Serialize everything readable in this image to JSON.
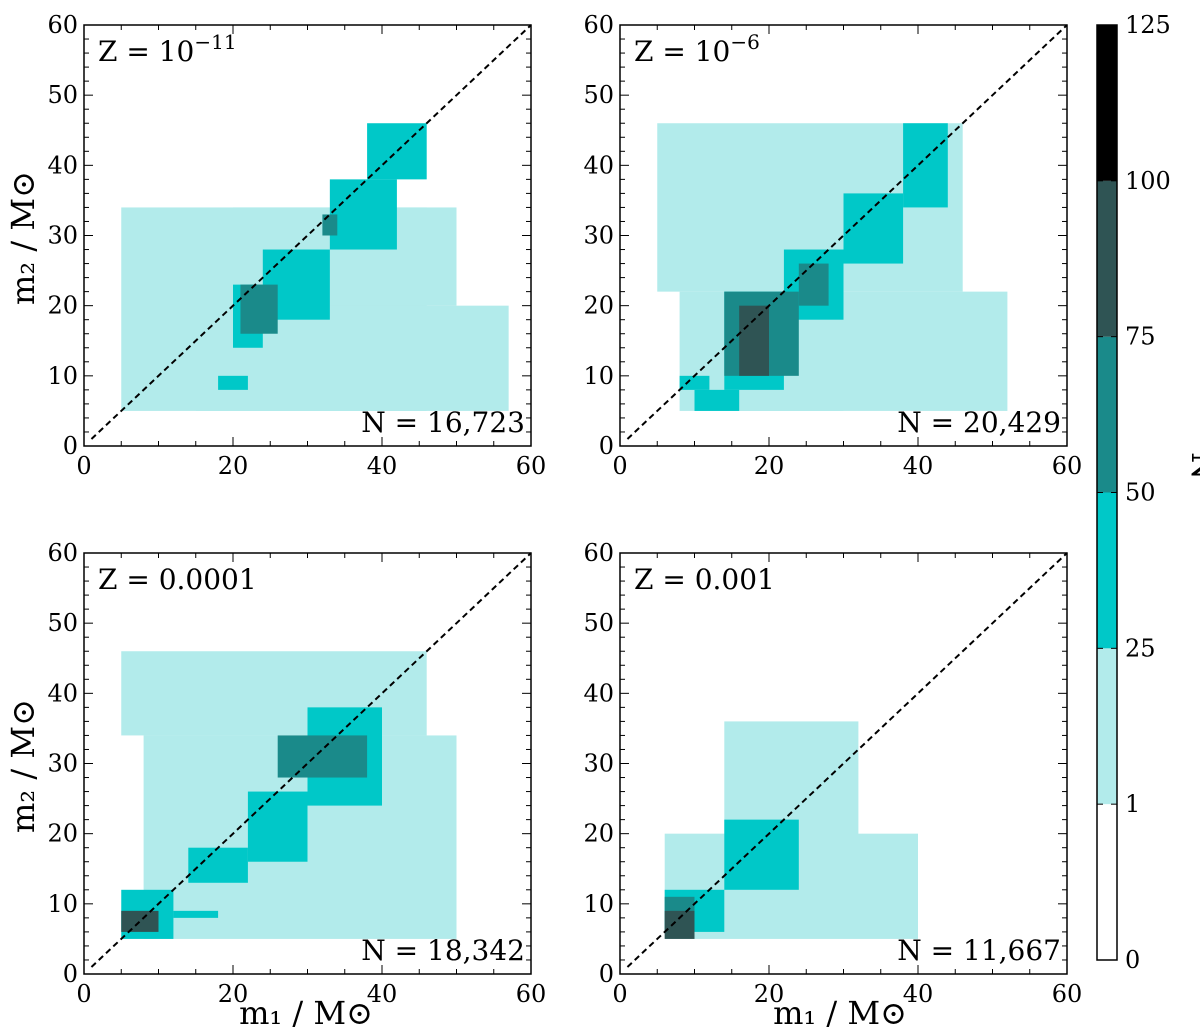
{
  "chart_data": {
    "type": "heatmap",
    "panels": [
      {
        "label": "Z = 10",
        "label_exponent": "−11",
        "count_text": "N = 16,723",
        "xlim": [
          0,
          60
        ],
        "ylim": [
          0,
          60
        ],
        "x_ticks": [
          "0",
          "20",
          "40",
          "60"
        ],
        "y_ticks": [
          "0",
          "10",
          "20",
          "30",
          "40",
          "50",
          "60"
        ],
        "regions": [
          {
            "rect": [
              5,
              46,
              5,
              34
            ],
            "level": 1
          },
          {
            "rect": [
              12,
              46,
              14,
              26
            ],
            "level": 1
          },
          {
            "rect": [
              15,
              57,
              5,
              20
            ],
            "level": 1
          },
          {
            "rect": [
              20,
              50,
              20,
              34
            ],
            "level": 1
          },
          {
            "rect": [
              20,
              24,
              14,
              23
            ],
            "level": 2
          },
          {
            "rect": [
              24,
              33,
              18,
              28
            ],
            "level": 2
          },
          {
            "rect": [
              33,
              42,
              28,
              38
            ],
            "level": 2
          },
          {
            "rect": [
              38,
              46,
              38,
              46
            ],
            "level": 2
          },
          {
            "rect": [
              18,
              22,
              8,
              10
            ],
            "level": 2
          },
          {
            "rect": [
              21,
              26,
              16,
              23
            ],
            "level": 3
          },
          {
            "rect": [
              32,
              34,
              30,
              33
            ],
            "level": 3
          }
        ]
      },
      {
        "label": "Z = 10",
        "label_exponent": "−6",
        "count_text": "N = 20,429",
        "xlim": [
          0,
          60
        ],
        "ylim": [
          0,
          60
        ],
        "x_ticks": [
          "0",
          "20",
          "40",
          "60"
        ],
        "y_ticks": [
          "0",
          "10",
          "20",
          "30",
          "40",
          "50",
          "60"
        ],
        "regions": [
          {
            "rect": [
              5,
              46,
              22,
              46
            ],
            "level": 1
          },
          {
            "rect": [
              8,
              52,
              5,
              22
            ],
            "level": 1
          },
          {
            "rect": [
              12,
              30,
              5,
              20
            ],
            "level": 1
          },
          {
            "rect": [
              8,
              12,
              8,
              10
            ],
            "level": 2
          },
          {
            "rect": [
              10,
              16,
              5,
              8
            ],
            "level": 2
          },
          {
            "rect": [
              14,
              22,
              8,
              22
            ],
            "level": 2
          },
          {
            "rect": [
              22,
              30,
              18,
              28
            ],
            "level": 2
          },
          {
            "rect": [
              30,
              38,
              26,
              36
            ],
            "level": 2
          },
          {
            "rect": [
              38,
              44,
              34,
              46
            ],
            "level": 2
          },
          {
            "rect": [
              14,
              24,
              10,
              22
            ],
            "level": 3
          },
          {
            "rect": [
              24,
              28,
              20,
              26
            ],
            "level": 3
          },
          {
            "rect": [
              16,
              20,
              10,
              20
            ],
            "level": 4
          }
        ]
      },
      {
        "label": "Z = 0.0001",
        "label_exponent": "",
        "count_text": "N = 18,342",
        "xlim": [
          0,
          60
        ],
        "ylim": [
          0,
          60
        ],
        "x_ticks": [
          "0",
          "20",
          "40",
          "60"
        ],
        "y_ticks": [
          "0",
          "10",
          "20",
          "30",
          "40",
          "50",
          "60"
        ],
        "regions": [
          {
            "rect": [
              5,
              46,
              34,
              46
            ],
            "level": 1
          },
          {
            "rect": [
              8,
              50,
              5,
              34
            ],
            "level": 1
          },
          {
            "rect": [
              5,
              12,
              5,
              12
            ],
            "level": 2
          },
          {
            "rect": [
              12,
              18,
              8,
              9
            ],
            "level": 2
          },
          {
            "rect": [
              14,
              22,
              13,
              18
            ],
            "level": 2
          },
          {
            "rect": [
              22,
              30,
              16,
              26
            ],
            "level": 2
          },
          {
            "rect": [
              30,
              40,
              24,
              38
            ],
            "level": 2
          },
          {
            "rect": [
              26,
              38,
              28,
              34
            ],
            "level": 3
          },
          {
            "rect": [
              5,
              10,
              6,
              9
            ],
            "level": 4
          }
        ]
      },
      {
        "label": "Z = 0.001",
        "label_exponent": "",
        "count_text": "N = 11,667",
        "xlim": [
          0,
          60
        ],
        "ylim": [
          0,
          60
        ],
        "x_ticks": [
          "0",
          "20",
          "40",
          "60"
        ],
        "y_ticks": [
          "0",
          "10",
          "20",
          "30",
          "40",
          "50",
          "60"
        ],
        "regions": [
          {
            "rect": [
              6,
              40,
              5,
              20
            ],
            "level": 1
          },
          {
            "rect": [
              14,
              32,
              14,
              36
            ],
            "level": 1
          },
          {
            "rect": [
              6,
              14,
              6,
              12
            ],
            "level": 2
          },
          {
            "rect": [
              14,
              24,
              12,
              22
            ],
            "level": 2
          },
          {
            "rect": [
              6,
              10,
              6,
              11
            ],
            "level": 3
          },
          {
            "rect": [
              6,
              10,
              5,
              9
            ],
            "level": 4
          }
        ]
      }
    ],
    "diagonal": "dashed y = x",
    "colorbar": {
      "label": "N",
      "ticks": [
        "0",
        "1",
        "25",
        "50",
        "75",
        "100",
        "125"
      ],
      "levels": [
        {
          "from": 0,
          "to": 1,
          "color": "#ffffff"
        },
        {
          "from": 1,
          "to": 25,
          "color": "#b2ebeb"
        },
        {
          "from": 25,
          "to": 50,
          "color": "#00c8c8"
        },
        {
          "from": 50,
          "to": 75,
          "color": "#1a8a8a"
        },
        {
          "from": 75,
          "to": 100,
          "color": "#2f5454"
        },
        {
          "from": 100,
          "to": 125,
          "color": "#000000"
        }
      ]
    },
    "xlabel": "m₁ / M⊙",
    "ylabel": "m₂ / M⊙"
  }
}
